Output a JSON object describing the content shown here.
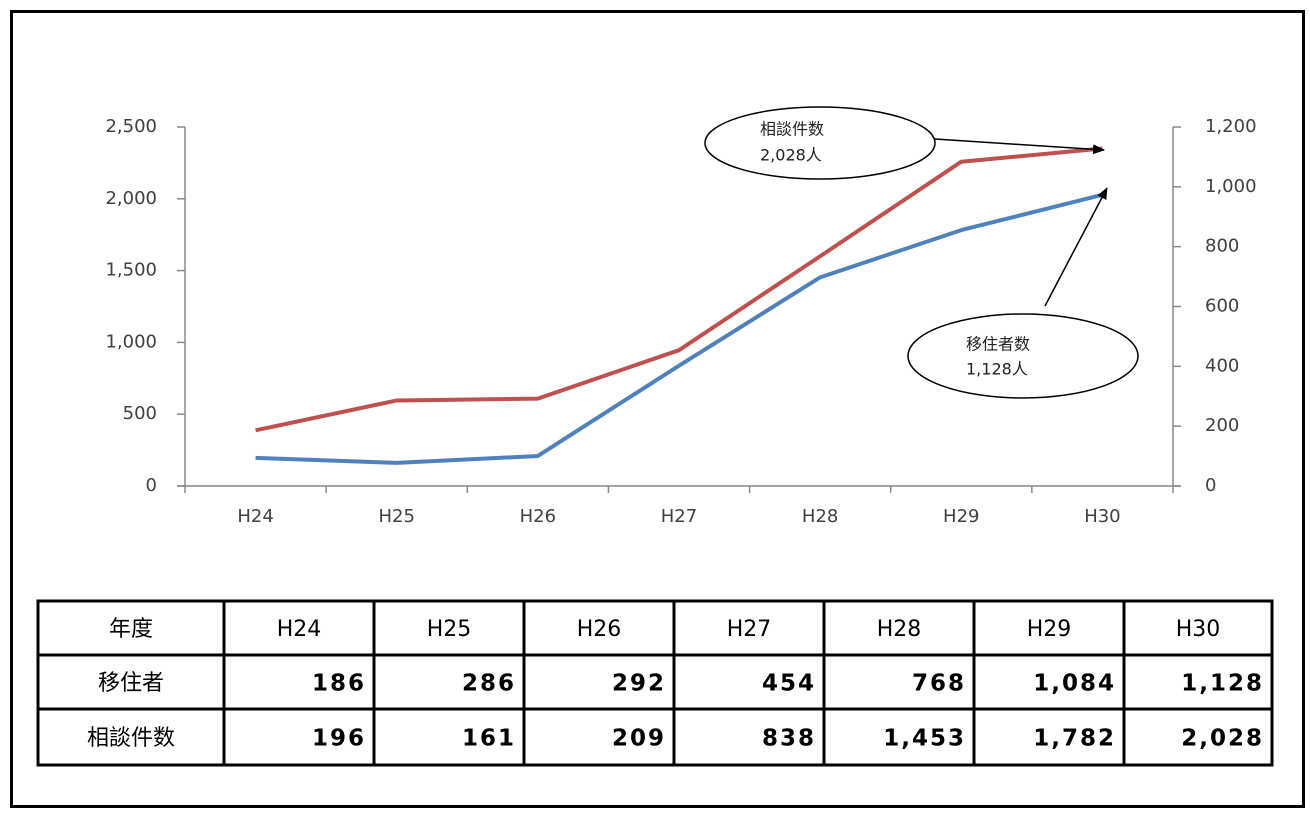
{
  "chart_data": {
    "type": "line",
    "categories": [
      "H24",
      "H25",
      "H26",
      "H27",
      "H28",
      "H29",
      "H30"
    ],
    "series": [
      {
        "name": "移住者",
        "color": "#c0504d",
        "axis": "y2",
        "values": [
          186,
          286,
          292,
          454,
          768,
          1084,
          1128
        ],
        "value_labels": [
          "186",
          "286",
          "292",
          "454",
          "768",
          "1,084",
          "1,128"
        ]
      },
      {
        "name": "相談件数",
        "color": "#4f81bd",
        "axis": "y",
        "values": [
          196,
          161,
          209,
          838,
          1453,
          1782,
          2028
        ],
        "value_labels": [
          "196",
          "161",
          "209",
          "838",
          "1,453",
          "1,782",
          "2,028"
        ]
      }
    ],
    "ylim": [
      0,
      2500
    ],
    "yticks": [
      0,
      500,
      {
        "value": 1000,
        "label": "1,000"
      },
      {
        "value": 1500,
        "label": "1,500"
      },
      {
        "value": 2000,
        "label": "2,000"
      },
      {
        "value": 2500,
        "label": "2,500"
      }
    ],
    "y2lim": [
      0,
      1200
    ],
    "y2ticks": [
      0,
      200,
      400,
      600,
      800,
      {
        "value": 1000,
        "label": "1,000"
      },
      {
        "value": 1200,
        "label": "1,200"
      }
    ],
    "grid": false,
    "annotations": [
      {
        "lines": [
          "相談件数",
          "2,028人"
        ]
      },
      {
        "lines": [
          "移住者数",
          "1,128人"
        ]
      }
    ],
    "table": {
      "header": "年度"
    }
  }
}
